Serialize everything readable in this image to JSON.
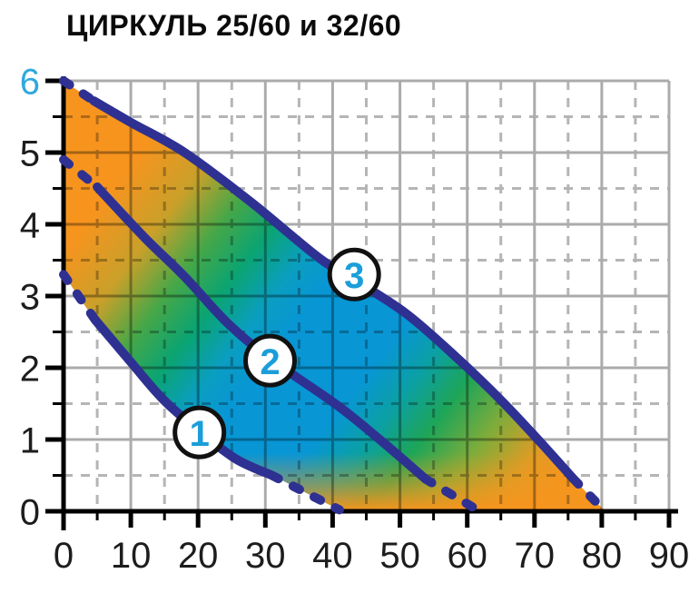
{
  "title": "ЦИРКУЛЬ 25/60 и 32/60",
  "colors": {
    "curve_navy": "#2E3192",
    "accent_cyan": "#1B9ED9",
    "y6_label_cyan": "#2FA8DF",
    "fill_orange": "#F7941E",
    "fill_green": "#45A748",
    "fill_teal": "#0BA472",
    "fill_blue": "#0896D5",
    "grid_major": "#ABABAB",
    "grid_minor": "#B5B5B5",
    "axis_black": "#000000",
    "tick_label": "#1d1d1d",
    "marker_circle_stroke": "#111111",
    "marker_circle_fill": "#ffffff"
  },
  "chart_data": {
    "type": "line",
    "title": "ЦИРКУЛЬ 25/60 и 32/60",
    "xlabel": "",
    "ylabel": "",
    "xlim": [
      0,
      90
    ],
    "ylim": [
      0,
      6
    ],
    "x_ticks": [
      0,
      10,
      20,
      30,
      40,
      50,
      60,
      70,
      80,
      90
    ],
    "y_ticks": [
      0,
      1,
      2,
      3,
      4,
      5,
      6
    ],
    "x_minor_step": 5,
    "y_minor_step": 0.5,
    "grid": "major solid, minor dashed",
    "legend_position": "none",
    "y_tick_accent": {
      "value": 6,
      "color": "#2FA8DF"
    },
    "series": [
      {
        "name": "1",
        "start_dash": [
          [
            0,
            3.3
          ],
          [
            4.7,
            2.67
          ]
        ],
        "solid": [
          [
            4.7,
            2.67
          ],
          [
            10,
            2.08
          ],
          [
            14.8,
            1.56
          ],
          [
            20,
            1.13
          ],
          [
            25.6,
            0.73
          ],
          [
            31,
            0.5
          ]
        ],
        "end_dash": [
          [
            31,
            0.5
          ],
          [
            36,
            0.26
          ],
          [
            41,
            0.02
          ]
        ]
      },
      {
        "name": "2",
        "start_dash": [
          [
            0,
            4.9
          ],
          [
            5,
            4.52
          ]
        ],
        "solid": [
          [
            5,
            4.52
          ],
          [
            12,
            3.82
          ],
          [
            18,
            3.27
          ],
          [
            24.3,
            2.63
          ],
          [
            30.8,
            2.12
          ],
          [
            40.5,
            1.49
          ],
          [
            47,
            1.0
          ],
          [
            53.8,
            0.45
          ]
        ],
        "end_dash": [
          [
            53.8,
            0.45
          ],
          [
            61.5,
            0.02
          ]
        ]
      },
      {
        "name": "3",
        "start_dash": [
          [
            0,
            6.0
          ],
          [
            4.5,
            5.72
          ]
        ],
        "solid": [
          [
            4.5,
            5.72
          ],
          [
            10,
            5.42
          ],
          [
            18,
            5.0
          ],
          [
            28,
            4.3
          ],
          [
            38,
            3.53
          ],
          [
            44,
            3.18
          ],
          [
            51,
            2.75
          ],
          [
            58,
            2.18
          ],
          [
            65,
            1.55
          ],
          [
            71,
            0.95
          ],
          [
            75.8,
            0.45
          ]
        ],
        "end_dash": [
          [
            75.8,
            0.45
          ],
          [
            80.3,
            0.02
          ]
        ]
      }
    ],
    "markers": [
      {
        "label": "1",
        "x": 20.2,
        "y": 1.1
      },
      {
        "label": "2",
        "x": 30.7,
        "y": 2.1
      },
      {
        "label": "3",
        "x": 43.2,
        "y": 3.3
      }
    ],
    "operating_area": {
      "bounded_by": "curve 1 (below), curve 3 (above), y-axis, x-axis",
      "bottom_join_x": 41,
      "gradient_axis": {
        "from": [
          0,
          5.3
        ],
        "to": [
          71.5,
          0.16
        ]
      },
      "gradient_stops": [
        {
          "o": 0.0,
          "c": "#F7941E"
        },
        {
          "o": 0.12,
          "c": "#F7941E"
        },
        {
          "o": 0.22,
          "c": "#C9A02A"
        },
        {
          "o": 0.3,
          "c": "#45A748"
        },
        {
          "o": 0.37,
          "c": "#0BA472"
        },
        {
          "o": 0.44,
          "c": "#0A9EC1"
        },
        {
          "o": 0.5,
          "c": "#0896D5"
        },
        {
          "o": 0.64,
          "c": "#0896D5"
        },
        {
          "o": 0.71,
          "c": "#0BA0A4"
        },
        {
          "o": 0.78,
          "c": "#1EA557"
        },
        {
          "o": 0.86,
          "c": "#7FAC3B"
        },
        {
          "o": 0.94,
          "c": "#DE9C25"
        },
        {
          "o": 1.0,
          "c": "#F7941E"
        }
      ],
      "bottom_glow_stops": [
        {
          "o": 0.0,
          "c": "#F7941E",
          "a": 1
        },
        {
          "o": 0.5,
          "c": "#F0981F",
          "a": 0.45
        },
        {
          "o": 1.0,
          "c": "#F0981F",
          "a": 0
        }
      ]
    }
  }
}
